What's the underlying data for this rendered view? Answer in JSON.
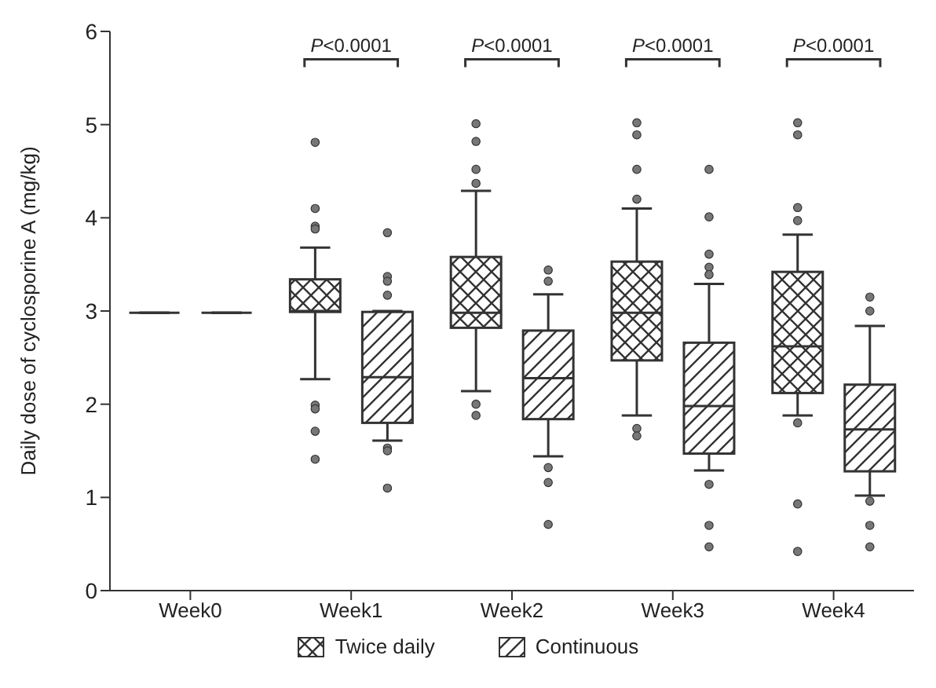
{
  "chart_data": {
    "type": "box",
    "ylabel": "Daily dose of cyclosporine A (mg/kg)",
    "categories": [
      "Week0",
      "Week1",
      "Week2",
      "Week3",
      "Week4"
    ],
    "ylim": [
      0,
      6
    ],
    "yticks": [
      0,
      1,
      2,
      3,
      4,
      5,
      6
    ],
    "legend": "bottom",
    "series": [
      {
        "name": "Twice daily",
        "color": "#333333",
        "boxes": [
          {
            "low": 2.98,
            "q1": 2.98,
            "median": 2.98,
            "q3": 2.98,
            "high": 2.98
          },
          {
            "low": 2.27,
            "q1": 2.99,
            "median": 3.0,
            "q3": 3.34,
            "high": 3.68,
            "outliers": [
              4.81,
              4.1,
              3.91,
              3.88,
              1.99,
              1.95,
              1.71,
              1.41
            ]
          },
          {
            "low": 2.14,
            "q1": 2.82,
            "median": 2.98,
            "q3": 3.58,
            "high": 4.29,
            "outliers": [
              5.01,
              4.82,
              4.52,
              4.37,
              2.0,
              1.88
            ]
          },
          {
            "low": 1.88,
            "q1": 2.47,
            "median": 2.98,
            "q3": 3.53,
            "high": 4.1,
            "outliers": [
              5.02,
              4.89,
              4.52,
              4.2,
              1.74,
              1.66
            ]
          },
          {
            "low": 1.88,
            "q1": 2.12,
            "median": 2.62,
            "q3": 3.42,
            "high": 3.82,
            "outliers": [
              5.02,
              4.89,
              4.11,
              3.97,
              1.8,
              0.93,
              0.42
            ]
          }
        ]
      },
      {
        "name": "Continuous",
        "color": "#333333",
        "boxes": [
          {
            "low": 2.98,
            "q1": 2.98,
            "median": 2.98,
            "q3": 2.98,
            "high": 2.98
          },
          {
            "low": 1.61,
            "q1": 1.8,
            "median": 2.29,
            "q3": 2.99,
            "high": 3.0,
            "outliers": [
              3.84,
              3.37,
              3.32,
              3.17,
              1.53,
              1.5,
              1.1
            ]
          },
          {
            "low": 1.44,
            "q1": 1.84,
            "median": 2.28,
            "q3": 2.79,
            "high": 3.18,
            "outliers": [
              3.44,
              3.32,
              1.32,
              1.16,
              0.71
            ]
          },
          {
            "low": 1.29,
            "q1": 1.47,
            "median": 1.98,
            "q3": 2.66,
            "high": 3.29,
            "outliers": [
              4.52,
              4.01,
              3.61,
              3.47,
              3.39,
              1.14,
              0.7,
              0.47
            ]
          },
          {
            "low": 1.02,
            "q1": 1.28,
            "median": 1.73,
            "q3": 2.21,
            "high": 2.84,
            "outliers": [
              3.15,
              3.0,
              0.96,
              0.7,
              0.47
            ]
          }
        ]
      }
    ],
    "annotations": [
      "P<0.0001",
      "P<0.0001",
      "P<0.0001",
      "P<0.0001"
    ]
  }
}
